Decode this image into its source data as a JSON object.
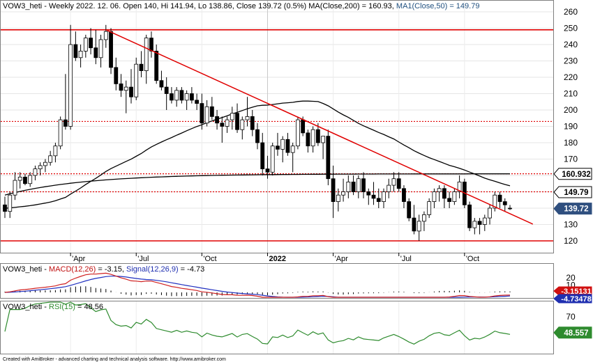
{
  "header": {
    "symbol": "VOW3_heti",
    "info": " - Weekly 2022. 12. 06. Open 140, Hi 141.94, Lo 138.86, Close 139.72 (0.5%) ",
    "ma200_label": "MA(Close,200) = 160.93, ",
    "ma50_label": "MA1(Close,50) = 149.79"
  },
  "macd_header": {
    "symbol": "VOW3_heti",
    "sep": " - ",
    "macd_label": "MACD(12,26)",
    "macd_value": " = -3.15, ",
    "signal_label": "Signal(12,26,9)",
    "signal_value": " = -4.73"
  },
  "rsi_header": {
    "symbol": "VOW3_heti",
    "sep": " - ",
    "rsi_label": "RSI(15)",
    "rsi_value": " = 48.56"
  },
  "footer": "Created with AmiBroker - advanced charting and technical analysis software. http://www.amibroker.com",
  "colors": {
    "bull": "#ffffff",
    "bear": "#000000",
    "trend": "#e00000",
    "ma": "#000000",
    "macd": "#d02020",
    "signal": "#2030c0",
    "rsi": "#2e8b2e"
  },
  "chart_data": [
    {
      "type": "candlestick",
      "title": "VOW3_heti - Weekly",
      "x_ticks": [
        "Apr",
        "Jul",
        "Oct",
        "2022",
        "Apr",
        "Jul",
        "Oct"
      ],
      "y_ticks": [
        120,
        130,
        140,
        150,
        160,
        170,
        180,
        190,
        200,
        210,
        220,
        230,
        240,
        250,
        260
      ],
      "ylim": [
        115,
        265
      ],
      "grid": true,
      "ohlc_weekly": [
        [
          142,
          147,
          134,
          138
        ],
        [
          138,
          150,
          134,
          148
        ],
        [
          148,
          162,
          145,
          157
        ],
        [
          157,
          162,
          152,
          159
        ],
        [
          159,
          161,
          154,
          155
        ],
        [
          155,
          162,
          153,
          160
        ],
        [
          160,
          166,
          157,
          164
        ],
        [
          164,
          168,
          160,
          166
        ],
        [
          166,
          170,
          162,
          168
        ],
        [
          168,
          175,
          166,
          172
        ],
        [
          172,
          180,
          168,
          178
        ],
        [
          178,
          196,
          176,
          194
        ],
        [
          194,
          222,
          188,
          190
        ],
        [
          190,
          252,
          188,
          240
        ],
        [
          240,
          248,
          230,
          232
        ],
        [
          232,
          240,
          226,
          236
        ],
        [
          236,
          246,
          232,
          244
        ],
        [
          244,
          250,
          234,
          238
        ],
        [
          238,
          249,
          228,
          232
        ],
        [
          232,
          246,
          226,
          243
        ],
        [
          243,
          252,
          238,
          248
        ],
        [
          248,
          250,
          222,
          226
        ],
        [
          226,
          232,
          212,
          216
        ],
        [
          216,
          222,
          208,
          212
        ],
        [
          212,
          218,
          198,
          214
        ],
        [
          214,
          225,
          204,
          208
        ],
        [
          208,
          232,
          206,
          228
        ],
        [
          228,
          236,
          220,
          224
        ],
        [
          224,
          246,
          216,
          244
        ],
        [
          244,
          248,
          232,
          236
        ],
        [
          236,
          240,
          216,
          218
        ],
        [
          218,
          224,
          212,
          214
        ],
        [
          214,
          220,
          200,
          210
        ],
        [
          210,
          214,
          204,
          206
        ],
        [
          206,
          214,
          202,
          212
        ],
        [
          212,
          214,
          204,
          206
        ],
        [
          206,
          212,
          200,
          210
        ],
        [
          210,
          214,
          204,
          206
        ],
        [
          206,
          210,
          200,
          204
        ],
        [
          204,
          210,
          188,
          192
        ],
        [
          192,
          206,
          190,
          202
        ],
        [
          202,
          208,
          194,
          196
        ],
        [
          196,
          200,
          188,
          192
        ],
        [
          192,
          196,
          180,
          190
        ],
        [
          190,
          196,
          186,
          194
        ],
        [
          194,
          202,
          188,
          198
        ],
        [
          198,
          204,
          186,
          188
        ],
        [
          188,
          196,
          182,
          194
        ],
        [
          194,
          208,
          190,
          196
        ],
        [
          196,
          200,
          184,
          188
        ],
        [
          188,
          192,
          176,
          180
        ],
        [
          180,
          186,
          160,
          164
        ],
        [
          164,
          172,
          158,
          162
        ],
        [
          162,
          180,
          160,
          178
        ],
        [
          178,
          186,
          172,
          176
        ],
        [
          176,
          184,
          168,
          182
        ],
        [
          182,
          186,
          172,
          174
        ],
        [
          174,
          180,
          162,
          178
        ],
        [
          178,
          196,
          176,
          194
        ],
        [
          194,
          196,
          184,
          186
        ],
        [
          186,
          188,
          174,
          178
        ],
        [
          178,
          190,
          174,
          188
        ],
        [
          188,
          192,
          178,
          180
        ],
        [
          180,
          184,
          170,
          184
        ],
        [
          184,
          188,
          154,
          158
        ],
        [
          158,
          166,
          134,
          144
        ],
        [
          144,
          152,
          138,
          148
        ],
        [
          148,
          158,
          144,
          150
        ],
        [
          150,
          160,
          146,
          156
        ],
        [
          156,
          160,
          148,
          150
        ],
        [
          150,
          160,
          146,
          158
        ],
        [
          158,
          162,
          146,
          150
        ],
        [
          150,
          152,
          142,
          148
        ],
        [
          148,
          156,
          142,
          146
        ],
        [
          146,
          152,
          140,
          144
        ],
        [
          144,
          152,
          140,
          150
        ],
        [
          150,
          158,
          146,
          154
        ],
        [
          154,
          162,
          150,
          158
        ],
        [
          158,
          162,
          150,
          152
        ],
        [
          152,
          154,
          140,
          144
        ],
        [
          144,
          146,
          132,
          134
        ],
        [
          134,
          142,
          124,
          126
        ],
        [
          126,
          136,
          120,
          132
        ],
        [
          132,
          138,
          126,
          136
        ],
        [
          136,
          146,
          134,
          144
        ],
        [
          144,
          152,
          140,
          150
        ],
        [
          150,
          154,
          144,
          152
        ],
        [
          152,
          154,
          140,
          146
        ],
        [
          146,
          150,
          140,
          144
        ],
        [
          144,
          152,
          142,
          150
        ],
        [
          150,
          160,
          146,
          156
        ],
        [
          156,
          158,
          140,
          142
        ],
        [
          142,
          144,
          126,
          128
        ],
        [
          128,
          134,
          124,
          132
        ],
        [
          132,
          134,
          124,
          130
        ],
        [
          130,
          136,
          126,
          134
        ],
        [
          134,
          142,
          130,
          140
        ],
        [
          140,
          150,
          138,
          148
        ],
        [
          148,
          150,
          140,
          144
        ],
        [
          144,
          146,
          138,
          142
        ],
        [
          140,
          141.94,
          138.86,
          139.72
        ]
      ],
      "series": [
        {
          "name": "MA(Close,200)",
          "last": 160.93
        },
        {
          "name": "MA1(Close,50)",
          "last": 149.79
        }
      ],
      "price_labels": [
        "160.932",
        "149.79",
        "139.72"
      ],
      "horizontal_levels": [
        249,
        193,
        161,
        150,
        120
      ],
      "trendline": {
        "from": [
          20,
          249
        ],
        "to": [
          99,
          138
        ]
      }
    },
    {
      "type": "line",
      "title": "MACD(12,26) / Signal(12,26,9)",
      "y_ticks": [
        20,
        10
      ],
      "series": [
        {
          "name": "MACD(12,26)",
          "last": -3.15
        },
        {
          "name": "Signal(12,26,9)",
          "last": -4.73
        }
      ],
      "value_labels": [
        "-3.15131",
        "-4.73478"
      ]
    },
    {
      "type": "line",
      "title": "RSI(15)",
      "y_ticks": [
        70
      ],
      "series": [
        {
          "name": "RSI(15)",
          "last": 48.56
        }
      ],
      "value_labels": [
        "48.557"
      ]
    }
  ]
}
